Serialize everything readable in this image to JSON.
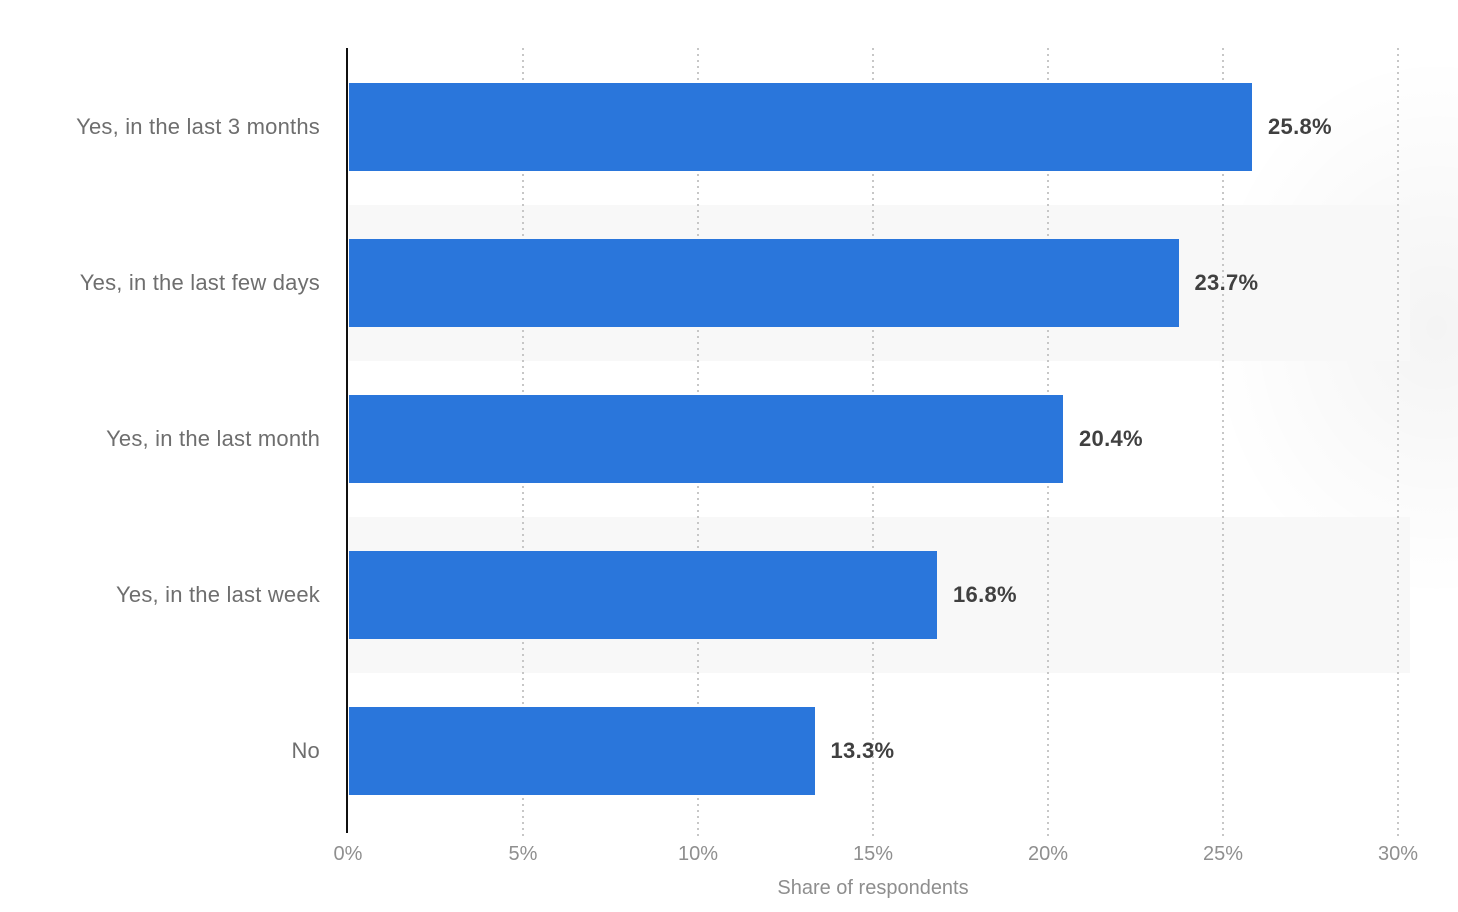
{
  "chart_data": {
    "type": "bar",
    "orientation": "horizontal",
    "title": "",
    "categories": [
      "Yes, in the last 3 months",
      "Yes, in the last few days",
      "Yes, in the last month",
      "Yes, in the last week",
      "No"
    ],
    "values": [
      25.8,
      23.7,
      20.4,
      16.8,
      13.3
    ],
    "value_labels": [
      "25.8%",
      "23.7%",
      "20.4%",
      "16.8%",
      "13.3%"
    ],
    "xlabel": "Share of respondents",
    "ylabel": "",
    "xlim": [
      0,
      30
    ],
    "xticks": [
      0,
      5,
      10,
      15,
      20,
      25,
      30
    ],
    "xtick_labels": [
      "0%",
      "5%",
      "10%",
      "15%",
      "20%",
      "25%",
      "30%"
    ],
    "grid": "vertical-dotted",
    "legend": "none",
    "striped_rows": [
      1,
      3
    ],
    "colors": {
      "bar": "#2a76db",
      "row_stripe": "#f8f8f8",
      "axis_line": "#101010",
      "gridline": "#c7c7c7",
      "category_label": "#6e6e6e",
      "value_label": "#404040",
      "tick_label": "#8f8f8f",
      "axis_title": "#8e8e8e",
      "background": "#ffffff"
    }
  }
}
